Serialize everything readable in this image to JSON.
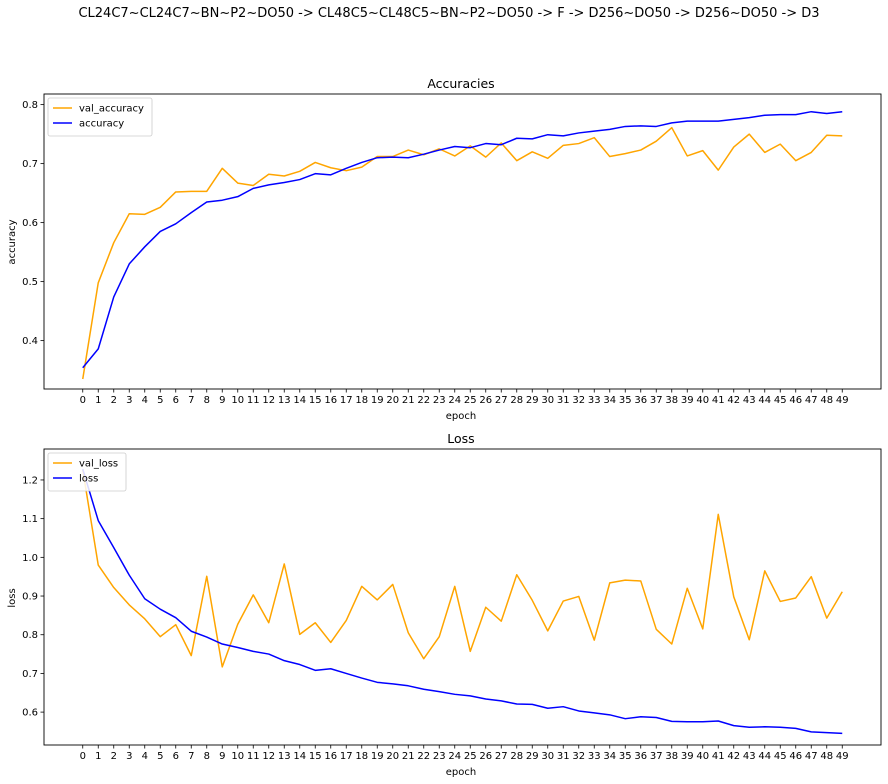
{
  "figure": {
    "suptitle": "CL24C7~CL24C7~BN~P2~DO50 -> CL48C5~CL48C5~BN~P2~DO50 -> F -> D256~DO50 -> D256~DO50 -> D3"
  },
  "colors": {
    "val": "#FFA500",
    "train": "#0000FF"
  },
  "chart_data": [
    {
      "type": "line",
      "title": "Accuracies",
      "xlabel": "epoch",
      "ylabel": "accuracy",
      "x": [
        0,
        1,
        2,
        3,
        4,
        5,
        6,
        7,
        8,
        9,
        10,
        11,
        12,
        13,
        14,
        15,
        16,
        17,
        18,
        19,
        20,
        21,
        22,
        23,
        24,
        25,
        26,
        27,
        28,
        29,
        30,
        31,
        32,
        33,
        34,
        35,
        36,
        37,
        38,
        39,
        40,
        41,
        42,
        43,
        44,
        45,
        46,
        47,
        48,
        49
      ],
      "xlim": [
        -2.5,
        51.5
      ],
      "ylim": [
        0.318,
        0.818
      ],
      "yticks": [
        0.4,
        0.5,
        0.6,
        0.7,
        0.8
      ],
      "ytick_labels": [
        "0.4",
        "0.5",
        "0.6",
        "0.7",
        "0.8"
      ],
      "legend_loc": "upper left",
      "series": [
        {
          "name": "val_accuracy",
          "color": "#FFA500",
          "values": [
            0.335,
            0.498,
            0.566,
            0.615,
            0.614,
            0.626,
            0.652,
            0.653,
            0.653,
            0.692,
            0.667,
            0.663,
            0.682,
            0.679,
            0.687,
            0.702,
            0.693,
            0.688,
            0.694,
            0.712,
            0.712,
            0.723,
            0.715,
            0.725,
            0.713,
            0.73,
            0.711,
            0.735,
            0.705,
            0.72,
            0.709,
            0.731,
            0.734,
            0.744,
            0.712,
            0.717,
            0.723,
            0.738,
            0.761,
            0.713,
            0.722,
            0.689,
            0.728,
            0.75,
            0.719,
            0.733,
            0.705,
            0.719,
            0.748,
            0.747
          ]
        },
        {
          "name": "accuracy",
          "color": "#0000FF",
          "values": [
            0.354,
            0.386,
            0.474,
            0.53,
            0.559,
            0.585,
            0.598,
            0.617,
            0.635,
            0.638,
            0.644,
            0.658,
            0.664,
            0.668,
            0.673,
            0.683,
            0.681,
            0.692,
            0.702,
            0.71,
            0.711,
            0.71,
            0.716,
            0.723,
            0.729,
            0.727,
            0.734,
            0.732,
            0.743,
            0.742,
            0.749,
            0.747,
            0.752,
            0.755,
            0.758,
            0.763,
            0.764,
            0.763,
            0.769,
            0.772,
            0.772,
            0.772,
            0.775,
            0.778,
            0.782,
            0.783,
            0.783,
            0.788,
            0.785,
            0.788
          ]
        }
      ]
    },
    {
      "type": "line",
      "title": "Loss",
      "xlabel": "epoch",
      "ylabel": "loss",
      "x": [
        0,
        1,
        2,
        3,
        4,
        5,
        6,
        7,
        8,
        9,
        10,
        11,
        12,
        13,
        14,
        15,
        16,
        17,
        18,
        19,
        20,
        21,
        22,
        23,
        24,
        25,
        26,
        27,
        28,
        29,
        30,
        31,
        32,
        33,
        34,
        35,
        36,
        37,
        38,
        39,
        40,
        41,
        42,
        43,
        44,
        45,
        46,
        47,
        48,
        49
      ],
      "xlim": [
        -2.5,
        51.5
      ],
      "ylim": [
        0.515,
        1.28
      ],
      "yticks": [
        0.6,
        0.7,
        0.8,
        0.9,
        1.0,
        1.1,
        1.2
      ],
      "ytick_labels": [
        "0.6",
        "0.7",
        "0.8",
        "0.9",
        "1.0",
        "1.1",
        "1.2"
      ],
      "legend_loc": "upper left",
      "series": [
        {
          "name": "val_loss",
          "color": "#FFA500",
          "values": [
            1.226,
            0.98,
            0.922,
            0.877,
            0.841,
            0.795,
            0.826,
            0.746,
            0.951,
            0.717,
            0.827,
            0.903,
            0.831,
            0.983,
            0.801,
            0.831,
            0.78,
            0.837,
            0.925,
            0.89,
            0.93,
            0.805,
            0.738,
            0.795,
            0.925,
            0.757,
            0.871,
            0.835,
            0.955,
            0.889,
            0.81,
            0.887,
            0.899,
            0.786,
            0.934,
            0.941,
            0.939,
            0.814,
            0.776,
            0.92,
            0.815,
            1.111,
            0.898,
            0.787,
            0.965,
            0.886,
            0.895,
            0.95,
            0.843,
            0.911
          ]
        },
        {
          "name": "loss",
          "color": "#0000FF",
          "values": [
            1.228,
            1.095,
            1.025,
            0.954,
            0.893,
            0.866,
            0.844,
            0.809,
            0.794,
            0.776,
            0.767,
            0.757,
            0.75,
            0.733,
            0.723,
            0.708,
            0.712,
            0.7,
            0.688,
            0.677,
            0.673,
            0.668,
            0.659,
            0.653,
            0.646,
            0.642,
            0.634,
            0.629,
            0.621,
            0.62,
            0.61,
            0.614,
            0.603,
            0.598,
            0.593,
            0.583,
            0.588,
            0.586,
            0.576,
            0.575,
            0.575,
            0.577,
            0.565,
            0.561,
            0.562,
            0.561,
            0.558,
            0.549,
            0.547,
            0.545
          ]
        }
      ]
    }
  ]
}
